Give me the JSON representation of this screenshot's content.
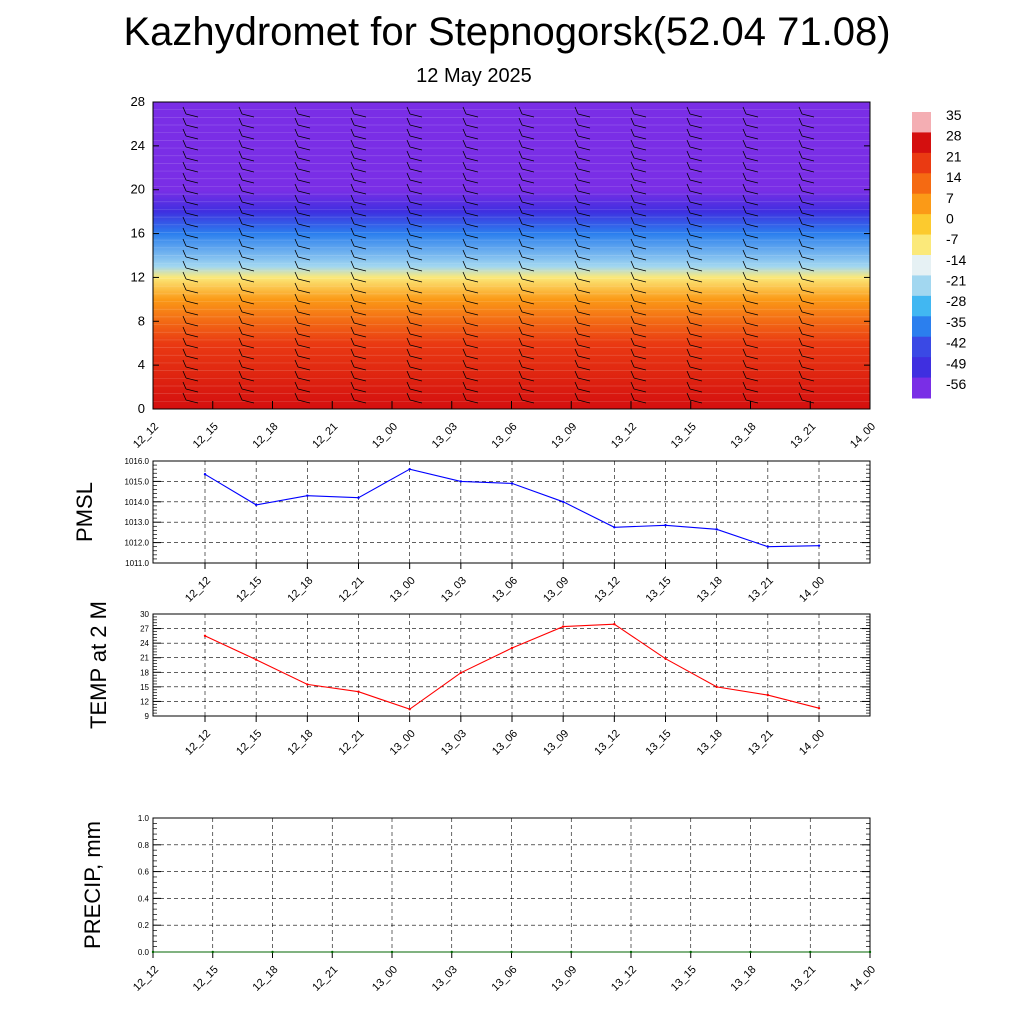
{
  "header": {
    "title": "Kazhydromet for Stepnogorsk(52.04 71.08)",
    "subtitle": "12 May 2025"
  },
  "chart_data": [
    {
      "type": "heatmap",
      "x_tick_labels": [
        "12_12",
        "12_15",
        "12_18",
        "12_21",
        "13_00",
        "13_03",
        "13_06",
        "13_09",
        "13_12",
        "13_15",
        "13_18",
        "13_21",
        "14_00"
      ],
      "ylim": [
        0,
        28
      ],
      "y_ticks": [
        0,
        4,
        8,
        12,
        16,
        20,
        24,
        28
      ],
      "colorbar_labels": [
        "35",
        "28",
        "21",
        "14",
        "7",
        "0",
        "-7",
        "-14",
        "-21",
        "-28",
        "-35",
        "-42",
        "-49",
        "-56"
      ],
      "colorbar_colors": [
        "#f4aeb3",
        "#d40f0f",
        "#ea3a12",
        "#f56a12",
        "#fb9a17",
        "#fcca2e",
        "#fbe97a",
        "#e6f1f4",
        "#a2d7f0",
        "#41b7f2",
        "#2b7fee",
        "#3a49e5",
        "#3f2fe0",
        "#7a2ee6"
      ],
      "profile": [
        {
          "y": 0,
          "value": 28
        },
        {
          "y": 6,
          "value": 21
        },
        {
          "y": 10,
          "value": 7
        },
        {
          "y": 12,
          "value": -7
        },
        {
          "y": 13,
          "value": -21
        },
        {
          "y": 16,
          "value": -35
        },
        {
          "y": 18,
          "value": -49
        },
        {
          "y": 20,
          "value": -56
        },
        {
          "y": 28,
          "value": -56
        }
      ]
    },
    {
      "type": "line",
      "ylabel": "PMSL",
      "x_tick_labels": [
        "12_12",
        "12_15",
        "12_18",
        "12_21",
        "13_00",
        "13_03",
        "13_06",
        "13_09",
        "13_12",
        "13_15",
        "13_18",
        "13_21",
        "14_00"
      ],
      "y_ticks": [
        "1011.0",
        "1012.0",
        "1013.0",
        "1014.0",
        "1015.0",
        "1016.0"
      ],
      "ylim": [
        1011,
        1016
      ],
      "series": [
        {
          "color": "#0000ff",
          "values": [
            1015.35,
            1013.85,
            1014.3,
            1014.2,
            1015.6,
            1015.0,
            1014.9,
            1014.0,
            1012.75,
            1012.85,
            1012.65,
            1011.8,
            1011.85
          ]
        }
      ]
    },
    {
      "type": "line",
      "ylabel": "TEMP at 2 M",
      "x_tick_labels": [
        "12_12",
        "12_15",
        "12_18",
        "12_21",
        "13_00",
        "13_03",
        "13_06",
        "13_09",
        "13_12",
        "13_15",
        "13_18",
        "13_21",
        "14_00"
      ],
      "y_ticks": [
        "9",
        "12",
        "15",
        "18",
        "21",
        "24",
        "27",
        "30"
      ],
      "ylim": [
        9,
        30
      ],
      "series": [
        {
          "color": "#ff0000",
          "values": [
            25.5,
            20.6,
            15.5,
            14.0,
            10.4,
            17.9,
            23.0,
            27.4,
            27.9,
            20.8,
            15.0,
            13.3,
            10.6
          ]
        }
      ]
    },
    {
      "type": "line",
      "ylabel": "PRECIP, mm",
      "x_tick_labels": [
        "12_12",
        "12_15",
        "12_18",
        "12_21",
        "13_00",
        "13_03",
        "13_06",
        "13_09",
        "13_12",
        "13_15",
        "13_18",
        "13_21",
        "14_00"
      ],
      "y_ticks": [
        "0.0",
        "0.2",
        "0.4",
        "0.6",
        "0.8",
        "1.0"
      ],
      "ylim": [
        0,
        1
      ],
      "series": [
        {
          "color": "#006400",
          "values": [
            0,
            0,
            0,
            0,
            0,
            0,
            0,
            0,
            0,
            0,
            0,
            0,
            0
          ]
        }
      ]
    }
  ]
}
